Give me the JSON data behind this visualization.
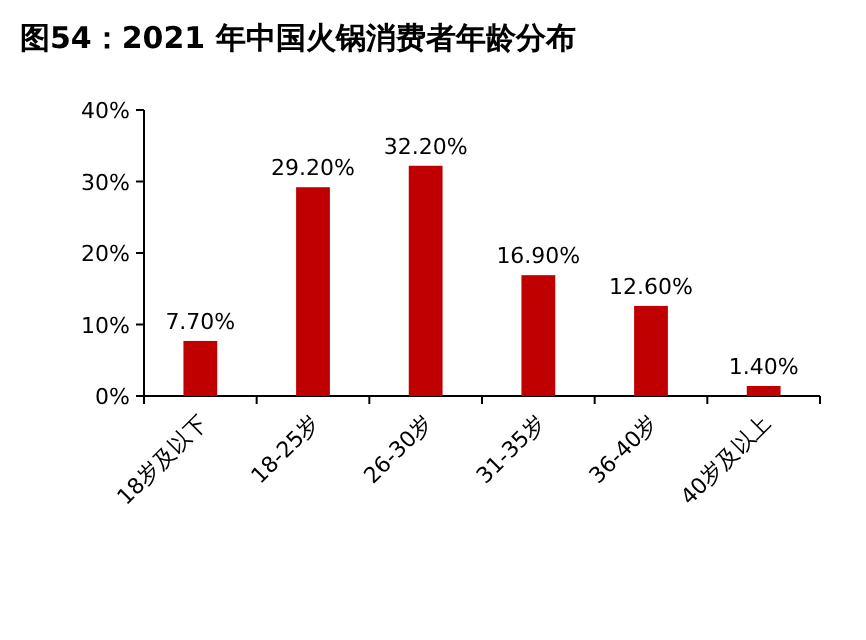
{
  "chart_data": {
    "type": "bar",
    "title": "图54：2021 年中国火锅消费者年龄分布",
    "categories": [
      "18岁及以下",
      "18-25岁",
      "26-30岁",
      "31-35岁",
      "36-40岁",
      "40岁及以上"
    ],
    "values": [
      7.7,
      29.2,
      32.2,
      16.9,
      12.6,
      1.4
    ],
    "value_labels": [
      "7.70%",
      "29.20%",
      "32.20%",
      "16.90%",
      "12.60%",
      "1.40%"
    ],
    "color": "#c00000",
    "ylim": [
      0,
      40
    ],
    "yticks": [
      {
        "value": 0,
        "label": "0%"
      },
      {
        "value": 10,
        "label": "10%"
      },
      {
        "value": 20,
        "label": "20%"
      },
      {
        "value": 30,
        "label": "30%"
      },
      {
        "value": 40,
        "label": "40%"
      }
    ],
    "grid": false
  }
}
